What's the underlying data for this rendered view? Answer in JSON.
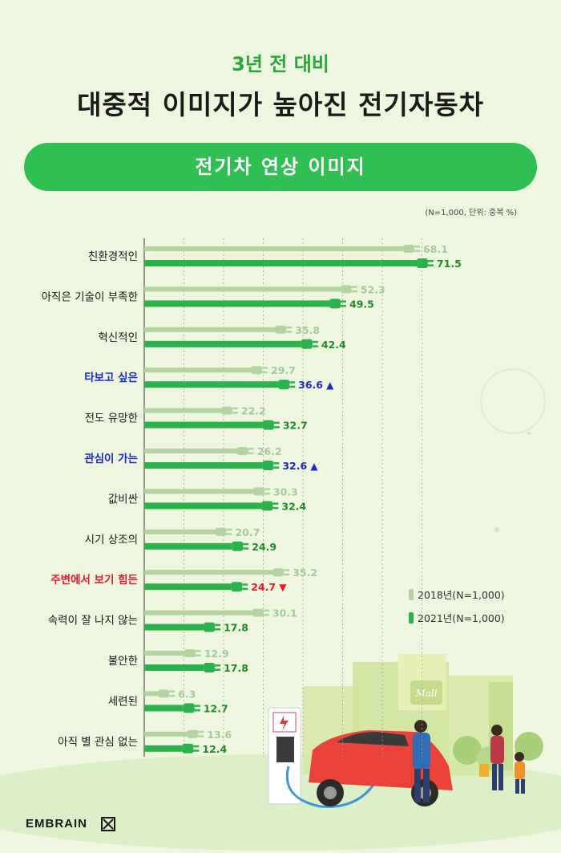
{
  "header": {
    "subtitle": "3년 전 대비",
    "title": "대중적 이미지가 높아진 전기자동차"
  },
  "banner": {
    "label": "전기차 연상 이미지"
  },
  "note": "(N=1,000, 단위: 중복 %)",
  "brand": {
    "name": "EMBRAIN"
  },
  "colors": {
    "series2018": "#b3d4a0",
    "series2021": "#2bb24c",
    "up": "#1a2ad0",
    "down": "#e8182c",
    "label2018": "#a6c99b",
    "label2021": "#1e8c28"
  },
  "chart_data": {
    "type": "bar",
    "orientation": "horizontal",
    "categories": [
      "친환경적인",
      "아직은 기술이 부족한",
      "혁신적인",
      "타보고 싶은",
      "전도 유망한",
      "관심이 가는",
      "값비싼",
      "시기 상조의",
      "주변에서 보기 힘든",
      "속력이 잘 나지 않는",
      "불안한",
      "세련된",
      "아직 별 관심 없는"
    ],
    "category_colors": [
      "normal",
      "normal",
      "normal",
      "up",
      "normal",
      "up",
      "normal",
      "normal",
      "down",
      "normal",
      "normal",
      "normal",
      "normal"
    ],
    "series": [
      {
        "name": "2018년(N=1,000)",
        "values": [
          68.1,
          52.3,
          35.8,
          29.7,
          22.2,
          26.2,
          30.3,
          20.7,
          35.2,
          30.1,
          12.9,
          6.3,
          13.6
        ]
      },
      {
        "name": "2021년(N=1,000)",
        "values": [
          71.5,
          49.5,
          42.4,
          36.6,
          32.7,
          32.6,
          32.4,
          24.9,
          24.7,
          17.8,
          17.8,
          12.7,
          12.4
        ]
      }
    ],
    "labels2021": [
      "71.5",
      "49.5",
      "42.4",
      "36.6",
      "32.7",
      "32.6",
      "32.4",
      "24.9",
      "24.7",
      "17.8",
      "17.8",
      "12.7",
      "12.4"
    ],
    "labels2018": [
      "68.1",
      "52.3",
      "35.8",
      "29.7",
      "22.2",
      "26.2",
      "30.3",
      "20.7",
      "35.2",
      "30.1",
      "12.9",
      "6.3",
      "13.6"
    ],
    "markers": [
      "",
      "",
      "",
      "▲",
      "",
      "▲",
      "",
      "",
      "▼",
      "",
      "",
      "",
      ""
    ],
    "xlim": [
      0,
      80
    ],
    "grid": true,
    "legend": "right"
  }
}
